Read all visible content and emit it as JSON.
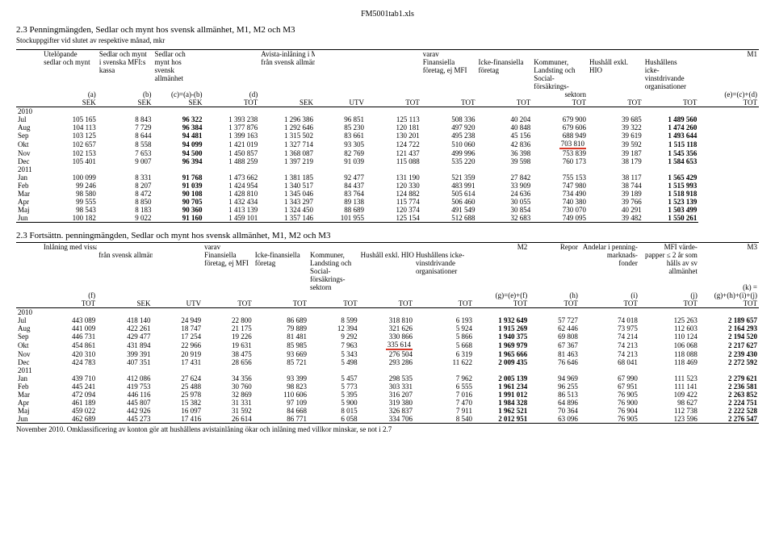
{
  "filename": "FM5001tab1.xls",
  "section1": {
    "title": "2.3 Penningmängden, Sedlar och mynt hos svensk allmänhet, M1, M2 och M3",
    "subtitle": "Stockuppgifter vid slutet av respektive månad, mkr",
    "headers": {
      "r1": [
        "",
        "Utelöpande",
        "Sedlar och mynt",
        "Sedlar och",
        "",
        "Avista-inlåning i MFI och staten,",
        "",
        "",
        "varav",
        "",
        "",
        "",
        "",
        "M1"
      ],
      "r2": [
        "",
        "sedlar och mynt",
        "i svenska MFI:s",
        "mynt hos",
        "",
        "från svensk allmänhet",
        "",
        "",
        "Finansiella",
        "Icke-finansiella",
        "Kommuner,",
        "Hushåll exkl.",
        "Hushållens",
        ""
      ],
      "r3": [
        "",
        "",
        "kassa",
        "svensk",
        "",
        "",
        "",
        "",
        "företag, ej MFI",
        "företag",
        "Landsting och",
        "HIO",
        "icke-",
        ""
      ],
      "r4": [
        "",
        "",
        "",
        "allmänhet",
        "",
        "",
        "",
        "",
        "",
        "",
        "Social-",
        "",
        "vinstdrivande",
        ""
      ],
      "r5": [
        "",
        "",
        "",
        "",
        "",
        "",
        "",
        "",
        "",
        "",
        "försäkrings-",
        "",
        "organisationer",
        ""
      ],
      "r6": [
        "",
        "(a)",
        "(b)",
        "(c)=(a)-(b)",
        "(d)",
        "",
        "",
        "",
        "",
        "",
        "sektorn",
        "",
        "",
        "(e)=(c)+(d)"
      ],
      "r7": [
        "",
        "SEK",
        "SEK",
        "SEK",
        "TOT",
        "SEK",
        "UTV",
        "TOT",
        "TOT",
        "TOT",
        "TOT",
        "TOT",
        "TOT",
        "TOT"
      ]
    },
    "years": [
      "2010",
      "2011"
    ],
    "rows2010": [
      [
        "Jul",
        "105 165",
        "8 843",
        "96 322",
        "1 393 238",
        "1 296 386",
        "96 851",
        "125 113",
        "508 336",
        "40 204",
        "679 900",
        "39 685",
        "1 489 560"
      ],
      [
        "Aug",
        "104 113",
        "7 729",
        "96 384",
        "1 377 876",
        "1 292 646",
        "85 230",
        "120 181",
        "497 920",
        "40 848",
        "679 606",
        "39 322",
        "1 474 260"
      ],
      [
        "Sep",
        "103 125",
        "8 644",
        "94 481",
        "1 399 163",
        "1 315 502",
        "83 661",
        "130 201",
        "495 238",
        "45 156",
        "688 949",
        "39 619",
        "1 493 644"
      ],
      [
        "Okt",
        "102 657",
        "8 558",
        "94 099",
        "1 421 019",
        "1 327 714",
        "93 305",
        "124 722",
        "510 060",
        "42 836",
        "703 810",
        "39 592",
        "1 515 118"
      ],
      [
        "Nov",
        "102 153",
        "7 653",
        "94 500",
        "1 450 857",
        "1 368 087",
        "82 769",
        "121 437",
        "499 996",
        "36 398",
        "753 839",
        "39 187",
        "1 545 356"
      ],
      [
        "Dec",
        "105 401",
        "9 007",
        "96 394",
        "1 488 259",
        "1 397 219",
        "91 039",
        "115 088",
        "535 220",
        "39 598",
        "760 173",
        "38 179",
        "1 584 653"
      ]
    ],
    "rows2011": [
      [
        "Jan",
        "100 099",
        "8 331",
        "91 768",
        "1 473 662",
        "1 381 185",
        "92 477",
        "131 190",
        "521 359",
        "27 842",
        "755 153",
        "38 117",
        "1 565 429"
      ],
      [
        "Feb",
        "99 246",
        "8 207",
        "91 039",
        "1 424 954",
        "1 340 517",
        "84 437",
        "120 330",
        "483 991",
        "33 909",
        "747 980",
        "38 744",
        "1 515 993"
      ],
      [
        "Mar",
        "98 580",
        "8 472",
        "90 108",
        "1 428 810",
        "1 345 046",
        "83 764",
        "124 882",
        "505 614",
        "24 636",
        "734 490",
        "39 189",
        "1 518 918"
      ],
      [
        "Apr",
        "99 555",
        "8 850",
        "90 705",
        "1 432 434",
        "1 343 297",
        "89 138",
        "115 774",
        "506 460",
        "30 055",
        "740 380",
        "39 766",
        "1 523 139"
      ],
      [
        "Maj",
        "98 543",
        "8 183",
        "90 360",
        "1 413 139",
        "1 324 450",
        "88 689",
        "120 374",
        "491 549",
        "30 854",
        "730 070",
        "40 291",
        "1 503 499"
      ],
      [
        "Jun",
        "100 182",
        "9 022",
        "91 160",
        "1 459 101",
        "1 357 146",
        "101 955",
        "125 154",
        "512 688",
        "32 683",
        "749 095",
        "39 482",
        "1 550 261"
      ]
    ],
    "highlight_row_index": 3,
    "highlight_col_index": 10
  },
  "section2": {
    "title": "2.3 Fortsättn. penningmängden, Sedlar och mynt hos svensk allmänhet, M1, M2 och M3",
    "headers": {
      "r1": [
        "",
        "Inlåning med vissa villkor i MFI och staten,",
        "",
        "",
        "varav",
        "",
        "",
        "",
        "",
        "M2",
        "Repor",
        "Andelar i penning-",
        "MFI värde-",
        "M3"
      ],
      "r2": [
        "",
        "",
        "från svensk allmänhet",
        "",
        "Finansiella",
        "Icke-finansiella",
        "Kommuner,",
        "Hushåll exkl. HIO",
        "Hushållens icke-",
        "",
        "",
        "marknads-",
        "papper ≤ 2 år som",
        ""
      ],
      "r3": [
        "",
        "",
        "",
        "",
        "företag, ej MFI",
        "företag",
        "Landsting och",
        "",
        "vinstdrivande",
        "",
        "",
        "fonder",
        "hålls av sv",
        ""
      ],
      "r4": [
        "",
        "",
        "",
        "",
        "",
        "",
        "Social-",
        "",
        "organisationer",
        "",
        "",
        "",
        "allmänhet",
        ""
      ],
      "r5": [
        "",
        "",
        "",
        "",
        "",
        "",
        "försäkrings-",
        "",
        "",
        "",
        "",
        "",
        "",
        ""
      ],
      "r6": [
        "",
        "",
        "",
        "",
        "",
        "",
        "sektorn",
        "",
        "",
        "",
        "",
        "",
        "",
        "(k) ="
      ],
      "r7": [
        "",
        "(f)",
        "",
        "",
        "",
        "",
        "",
        "",
        "",
        "(g)=(e)+(f)",
        "(h)",
        "(i)",
        "(j)",
        "(g)+(h)+(i)+(j)"
      ],
      "r8": [
        "",
        "TOT",
        "SEK",
        "UTV",
        "TOT",
        "TOT",
        "TOT",
        "TOT",
        "TOT",
        "TOT",
        "TOT",
        "TOT",
        "TOT",
        "TOT"
      ]
    },
    "years": [
      "2010",
      "2011"
    ],
    "rows2010": [
      [
        "Jul",
        "443 089",
        "418 140",
        "24 949",
        "22 800",
        "86 689",
        "8 599",
        "318 810",
        "6 193",
        "1 932 649",
        "57 727",
        "74 018",
        "125 263",
        "2 189 657"
      ],
      [
        "Aug",
        "441 009",
        "422 261",
        "18 747",
        "21 175",
        "79 889",
        "12 394",
        "321 626",
        "5 924",
        "1 915 269",
        "62 446",
        "73 975",
        "112 603",
        "2 164 293"
      ],
      [
        "Sep",
        "446 731",
        "429 477",
        "17 254",
        "19 226",
        "81 481",
        "9 292",
        "330 866",
        "5 866",
        "1 940 375",
        "69 808",
        "74 214",
        "110 124",
        "2 194 520"
      ],
      [
        "Okt",
        "454 861",
        "431 894",
        "22 966",
        "19 631",
        "85 985",
        "7 963",
        "335 614",
        "5 668",
        "1 969 979",
        "67 367",
        "74 213",
        "106 068",
        "2 217 627"
      ],
      [
        "Nov",
        "420 310",
        "399 391",
        "20 919",
        "38 475",
        "93 669",
        "5 343",
        "276 504",
        "6 319",
        "1 965 666",
        "81 463",
        "74 213",
        "118 088",
        "2 239 430"
      ],
      [
        "Dec",
        "424 783",
        "407 351",
        "17 431",
        "28 656",
        "85 721",
        "5 498",
        "293 286",
        "11 622",
        "2 009 435",
        "76 646",
        "68 041",
        "118 469",
        "2 272 592"
      ]
    ],
    "rows2011": [
      [
        "Jan",
        "439 710",
        "412 086",
        "27 624",
        "34 356",
        "93 399",
        "5 457",
        "298 535",
        "7 962",
        "2 005 139",
        "94 969",
        "67 990",
        "111 523",
        "2 279 621"
      ],
      [
        "Feb",
        "445 241",
        "419 753",
        "25 488",
        "30 760",
        "98 823",
        "5 773",
        "303 331",
        "6 555",
        "1 961 234",
        "96 255",
        "67 951",
        "111 141",
        "2 236 581"
      ],
      [
        "Mar",
        "472 094",
        "446 116",
        "25 978",
        "32 869",
        "110 606",
        "5 395",
        "316 207",
        "7 016",
        "1 991 012",
        "86 513",
        "76 905",
        "109 422",
        "2 263 852"
      ],
      [
        "Apr",
        "461 189",
        "445 807",
        "15 382",
        "31 331",
        "97 109",
        "5 900",
        "319 380",
        "7 470",
        "1 984 328",
        "64 896",
        "76 900",
        "98 627",
        "2 224 751"
      ],
      [
        "Maj",
        "459 022",
        "442 926",
        "16 097",
        "31 592",
        "84 668",
        "8 015",
        "326 837",
        "7 911",
        "1 962 521",
        "70 364",
        "76 904",
        "112 738",
        "2 222 528"
      ],
      [
        "Jun",
        "462 689",
        "445 273",
        "17 416",
        "26 614",
        "86 771",
        "6 058",
        "334 706",
        "8 540",
        "2 012 951",
        "63 096",
        "76 905",
        "123 596",
        "2 276 547"
      ]
    ],
    "highlight_row_index": 3,
    "highlight_col_index": 7
  },
  "footnote": "November 2010. Omklassificering av konton gör att hushållens avistainlåning ökar och inlåning med villkor minskar, se not i 2.7",
  "colors": {
    "text": "#000000",
    "bg": "#ffffff",
    "highlight": "#d93a2a"
  }
}
